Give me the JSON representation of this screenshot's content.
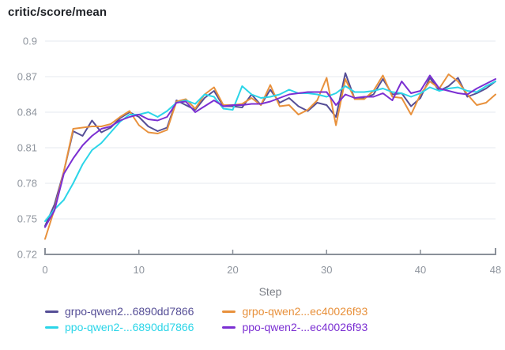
{
  "title": "critic/score/mean",
  "colors": {
    "title_text": "#1e2126",
    "tick_text": "#8f959e",
    "axis_label_text": "#797d84",
    "gridline": "#e5e8ef",
    "axis_line": "#8a9099",
    "background": "#ffffff"
  },
  "chart_data": {
    "type": "line",
    "title": "critic/score/mean",
    "xlabel": "Step",
    "ylabel": "",
    "xlim": [
      0,
      48
    ],
    "ylim": [
      0.72,
      0.9
    ],
    "x_ticks": [
      0,
      10,
      20,
      30,
      40,
      48
    ],
    "y_ticks": [
      0.9,
      0.87,
      0.84,
      0.81,
      0.78,
      0.75,
      0.72
    ],
    "grid": true,
    "legend_position": "bottom",
    "x": [
      0,
      1,
      2,
      3,
      4,
      5,
      6,
      7,
      8,
      9,
      10,
      11,
      12,
      13,
      14,
      15,
      16,
      17,
      18,
      19,
      20,
      21,
      22,
      23,
      24,
      25,
      26,
      27,
      28,
      29,
      30,
      31,
      32,
      33,
      34,
      35,
      36,
      37,
      38,
      39,
      40,
      41,
      42,
      43,
      44,
      45,
      46,
      47,
      48
    ],
    "series": [
      {
        "name": "grpo-qwen2...6890dd7866",
        "color": "#554e96",
        "values": [
          0.744,
          0.762,
          0.79,
          0.824,
          0.82,
          0.833,
          0.823,
          0.827,
          0.835,
          0.84,
          0.836,
          0.828,
          0.824,
          0.827,
          0.85,
          0.846,
          0.842,
          0.852,
          0.858,
          0.845,
          0.845,
          0.844,
          0.855,
          0.846,
          0.859,
          0.848,
          0.852,
          0.845,
          0.841,
          0.848,
          0.846,
          0.836,
          0.873,
          0.851,
          0.852,
          0.855,
          0.868,
          0.855,
          0.856,
          0.845,
          0.852,
          0.869,
          0.858,
          0.862,
          0.869,
          0.853,
          0.856,
          0.86,
          0.866
        ]
      },
      {
        "name": "grpo-qwen2...ec40026f93",
        "color": "#e8913c",
        "values": [
          0.733,
          0.758,
          0.79,
          0.826,
          0.827,
          0.828,
          0.828,
          0.83,
          0.836,
          0.841,
          0.829,
          0.823,
          0.822,
          0.825,
          0.849,
          0.851,
          0.843,
          0.855,
          0.861,
          0.846,
          0.846,
          0.847,
          0.852,
          0.846,
          0.863,
          0.845,
          0.846,
          0.838,
          0.842,
          0.85,
          0.869,
          0.829,
          0.868,
          0.851,
          0.851,
          0.858,
          0.871,
          0.853,
          0.852,
          0.838,
          0.855,
          0.866,
          0.86,
          0.872,
          0.866,
          0.855,
          0.846,
          0.848,
          0.855
        ]
      },
      {
        "name": "ppo-qwen2-...6890dd7866",
        "color": "#2bd5e8",
        "values": [
          0.748,
          0.758,
          0.766,
          0.78,
          0.796,
          0.808,
          0.814,
          0.823,
          0.832,
          0.838,
          0.838,
          0.84,
          0.836,
          0.841,
          0.848,
          0.85,
          0.847,
          0.855,
          0.853,
          0.843,
          0.842,
          0.862,
          0.855,
          0.852,
          0.853,
          0.855,
          0.859,
          0.856,
          0.856,
          0.855,
          0.853,
          0.856,
          0.862,
          0.857,
          0.857,
          0.858,
          0.86,
          0.857,
          0.856,
          0.853,
          0.856,
          0.861,
          0.858,
          0.86,
          0.861,
          0.858,
          0.857,
          0.862,
          0.866
        ]
      },
      {
        "name": "ppo-qwen2-...ec40026f93",
        "color": "#7b2fd2",
        "values": [
          0.743,
          0.757,
          0.788,
          0.801,
          0.812,
          0.82,
          0.826,
          0.828,
          0.833,
          0.836,
          0.838,
          0.834,
          0.833,
          0.836,
          0.848,
          0.849,
          0.84,
          0.845,
          0.85,
          0.845,
          0.846,
          0.846,
          0.847,
          0.847,
          0.849,
          0.852,
          0.855,
          0.856,
          0.857,
          0.857,
          0.857,
          0.846,
          0.855,
          0.852,
          0.853,
          0.853,
          0.856,
          0.85,
          0.866,
          0.856,
          0.858,
          0.871,
          0.86,
          0.858,
          0.856,
          0.855,
          0.86,
          0.864,
          0.868
        ]
      }
    ]
  }
}
